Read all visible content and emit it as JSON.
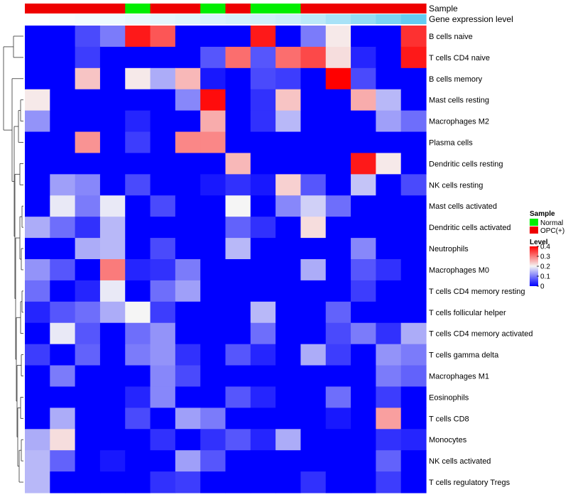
{
  "chart_data": {
    "type": "heatmap",
    "row_labels": [
      "B cells naive",
      "T cells CD4 naive",
      "B cells memory",
      "Mast cells resting",
      "Macrophages M2",
      "Plasma cells",
      "Dendritic cells resting",
      "NK cells resting",
      "Mast cells activated",
      "Dendritic cells activated",
      "Neutrophils",
      "Macrophages M0",
      "T cells CD4 memory resting",
      "T cells follicular helper",
      "T cells CD4 memory activated",
      "T cells gamma delta",
      "Macrophages M1",
      "Eosinophils",
      "T cells CD8",
      "Monocytes",
      "NK cells activated",
      "T cells regulatory  Tregs"
    ],
    "annotations": {
      "sample": {
        "label": "Sample",
        "values": [
          "OPC(+)",
          "OPC(+)",
          "OPC(+)",
          "OPC(+)",
          "Normal",
          "OPC(+)",
          "OPC(+)",
          "Normal",
          "OPC(+)",
          "Normal",
          "Normal",
          "OPC(+)",
          "OPC(+)",
          "OPC(+)",
          "OPC(+)",
          "OPC(+)"
        ],
        "colors": {
          "Normal": "#00ee00",
          "OPC(+)": "#ee0000"
        }
      },
      "gene_expression": {
        "label": "Gene expression level",
        "values": [
          0.02,
          0.05,
          0.08,
          0.1,
          0.13,
          0.16,
          0.19,
          0.22,
          0.25,
          0.28,
          0.31,
          0.4,
          0.52,
          0.64,
          0.78,
          0.92
        ]
      }
    },
    "values": [
      [
        0.0,
        0.0,
        0.06,
        0.1,
        0.38,
        0.33,
        0.0,
        0.0,
        0.0,
        0.38,
        0.0,
        0.1,
        0.21,
        0.0,
        0.0,
        0.36
      ],
      [
        0.0,
        0.0,
        0.05,
        0.0,
        0.0,
        0.0,
        0.0,
        0.07,
        0.31,
        0.07,
        0.31,
        0.34,
        0.22,
        0.03,
        0.0,
        0.38
      ],
      [
        0.0,
        0.0,
        0.24,
        0.0,
        0.21,
        0.14,
        0.25,
        0.02,
        0.0,
        0.06,
        0.05,
        0.0,
        0.4,
        0.06,
        0.0,
        0.0
      ],
      [
        0.21,
        0.0,
        0.0,
        0.0,
        0.0,
        0.0,
        0.11,
        0.39,
        0.0,
        0.04,
        0.24,
        0.0,
        0.0,
        0.26,
        0.15,
        0.0
      ],
      [
        0.12,
        0.0,
        0.0,
        0.0,
        0.03,
        0.0,
        0.0,
        0.26,
        0.0,
        0.04,
        0.15,
        0.0,
        0.0,
        0.0,
        0.13,
        0.09
      ],
      [
        0.0,
        0.0,
        0.28,
        0.0,
        0.05,
        0.0,
        0.29,
        0.29,
        0.0,
        0.0,
        0.0,
        0.0,
        0.0,
        0.0,
        0.0,
        0.0
      ],
      [
        0.0,
        0.0,
        0.0,
        0.0,
        0.0,
        0.0,
        0.0,
        0.0,
        0.25,
        0.0,
        0.0,
        0.0,
        0.0,
        0.38,
        0.21,
        0.0
      ],
      [
        0.0,
        0.13,
        0.11,
        0.0,
        0.06,
        0.0,
        0.0,
        0.02,
        0.04,
        0.02,
        0.23,
        0.07,
        0.0,
        0.16,
        0.0,
        0.06
      ],
      [
        0.0,
        0.19,
        0.1,
        0.19,
        0.0,
        0.06,
        0.0,
        0.0,
        0.2,
        0.0,
        0.11,
        0.17,
        0.09,
        0.0,
        0.0,
        0.0
      ],
      [
        0.14,
        0.09,
        0.04,
        0.15,
        0.0,
        0.0,
        0.0,
        0.0,
        0.08,
        0.04,
        0.0,
        0.22,
        0.0,
        0.0,
        0.0,
        0.0
      ],
      [
        0.0,
        0.0,
        0.14,
        0.15,
        0.0,
        0.06,
        0.0,
        0.0,
        0.15,
        0.0,
        0.0,
        0.0,
        0.0,
        0.11,
        0.0,
        0.0
      ],
      [
        0.12,
        0.07,
        0.0,
        0.3,
        0.03,
        0.04,
        0.1,
        0.0,
        0.0,
        0.0,
        0.0,
        0.14,
        0.0,
        0.07,
        0.04,
        0.0
      ],
      [
        0.09,
        0.0,
        0.03,
        0.19,
        0.0,
        0.09,
        0.13,
        0.0,
        0.0,
        0.0,
        0.0,
        0.0,
        0.0,
        0.05,
        0.0,
        0.0
      ],
      [
        0.03,
        0.07,
        0.09,
        0.14,
        0.2,
        0.05,
        0.0,
        0.0,
        0.0,
        0.15,
        0.0,
        0.0,
        0.08,
        0.0,
        0.0,
        0.0
      ],
      [
        0.0,
        0.19,
        0.07,
        0.0,
        0.09,
        0.12,
        0.0,
        0.0,
        0.0,
        0.09,
        0.0,
        0.0,
        0.06,
        0.1,
        0.04,
        0.14
      ],
      [
        0.05,
        0.0,
        0.08,
        0.0,
        0.1,
        0.12,
        0.04,
        0.0,
        0.07,
        0.03,
        0.0,
        0.14,
        0.05,
        0.0,
        0.12,
        0.1
      ],
      [
        0.0,
        0.1,
        0.0,
        0.0,
        0.0,
        0.11,
        0.06,
        0.0,
        0.0,
        0.0,
        0.0,
        0.0,
        0.0,
        0.0,
        0.1,
        0.08
      ],
      [
        0.0,
        0.0,
        0.0,
        0.0,
        0.03,
        0.11,
        0.0,
        0.0,
        0.07,
        0.03,
        0.0,
        0.0,
        0.09,
        0.0,
        0.05,
        0.0
      ],
      [
        0.0,
        0.14,
        0.0,
        0.0,
        0.06,
        0.0,
        0.13,
        0.1,
        0.0,
        0.0,
        0.0,
        0.0,
        0.02,
        0.0,
        0.27,
        0.0
      ],
      [
        0.14,
        0.22,
        0.0,
        0.0,
        0.0,
        0.04,
        0.0,
        0.04,
        0.07,
        0.03,
        0.14,
        0.0,
        0.0,
        0.0,
        0.04,
        0.03
      ],
      [
        0.15,
        0.08,
        0.0,
        0.02,
        0.0,
        0.0,
        0.13,
        0.07,
        0.0,
        0.0,
        0.0,
        0.0,
        0.0,
        0.0,
        0.08,
        0.0
      ],
      [
        0.15,
        0.0,
        0.0,
        0.0,
        0.0,
        0.04,
        0.05,
        0.0,
        0.0,
        0.0,
        0.0,
        0.04,
        0.0,
        0.0,
        0.05,
        0.0
      ]
    ],
    "color_scale": {
      "min": 0,
      "mid": 0.2,
      "max": 0.4,
      "low": "#0000ff",
      "midcolor": "#f5f5f5",
      "high": "#ff0000"
    },
    "legend": {
      "position": "right",
      "sample_title": "Sample",
      "sample_entries": [
        {
          "label": "Normal",
          "color": "#00ee00"
        },
        {
          "label": "OPC(+)",
          "color": "#ee0000"
        }
      ],
      "level_title": "Level",
      "level_ticks": [
        "0.4",
        "0.3",
        "0.2",
        "0.1",
        "0"
      ],
      "level_tick_values": [
        0.4,
        0.3,
        0.2,
        0.1,
        0
      ]
    },
    "dendrogram": "rows"
  }
}
